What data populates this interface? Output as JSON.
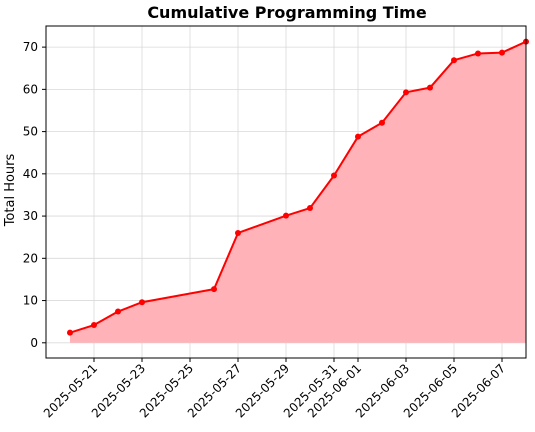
{
  "chart_data": {
    "type": "area",
    "title": "Cumulative Programming Time",
    "xlabel": "",
    "ylabel": "Total Hours",
    "x_type": "date",
    "xlim": [
      "2025-05-19",
      "2025-06-08"
    ],
    "ylim": [
      -3.6,
      75
    ],
    "grid": true,
    "legend": "none",
    "y_ticks": [
      0,
      10,
      20,
      30,
      40,
      50,
      60,
      70
    ],
    "x_ticks": [
      "2025-05-21",
      "2025-05-23",
      "2025-05-25",
      "2025-05-27",
      "2025-05-29",
      "2025-05-31",
      "2025-06-01",
      "2025-06-03",
      "2025-06-05",
      "2025-06-07"
    ],
    "x": [
      "2025-05-20",
      "2025-05-21",
      "2025-05-22",
      "2025-05-23",
      "2025-05-26",
      "2025-05-27",
      "2025-05-29",
      "2025-05-30",
      "2025-05-31",
      "2025-06-01",
      "2025-06-02",
      "2025-06-03",
      "2025-06-04",
      "2025-06-05",
      "2025-06-06",
      "2025-06-07",
      "2025-06-08"
    ],
    "series": [
      {
        "values": [
          2.4,
          4.2,
          7.4,
          9.6,
          12.7,
          26.0,
          30.1,
          31.9,
          39.6,
          48.8,
          52.1,
          59.3,
          60.4,
          66.9,
          68.5,
          68.7,
          71.3
        ]
      }
    ],
    "colors": {
      "line": "#ff0000",
      "fill": "#ffb3b8",
      "grid": "#d9d9d9"
    }
  }
}
